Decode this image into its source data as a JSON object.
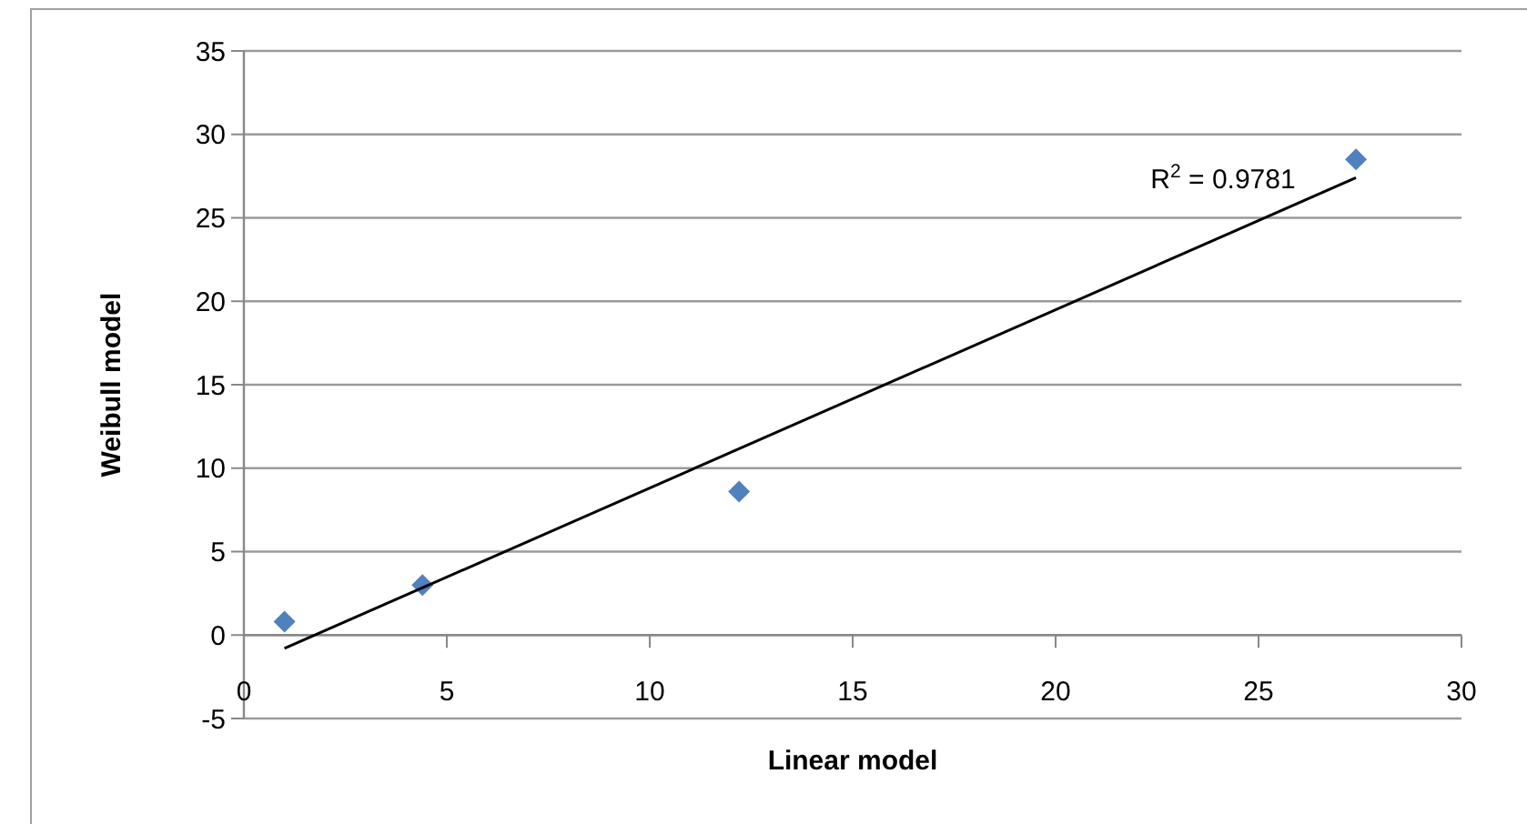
{
  "chart_data": {
    "type": "scatter",
    "xlabel": "Linear model",
    "ylabel": "Weibull model",
    "xlim": [
      0,
      30
    ],
    "xticks": [
      0,
      5,
      10,
      15,
      20,
      25,
      30
    ],
    "ylim": [
      -5,
      35
    ],
    "yticks": [
      -5,
      0,
      5,
      10,
      15,
      20,
      25,
      30,
      35
    ],
    "grid": "y",
    "marker": "diamond",
    "series": [
      {
        "color": "#4f81bd",
        "x": [
          1.0,
          4.4,
          12.2,
          27.4
        ],
        "values": [
          0.8,
          3.0,
          8.6,
          28.5
        ]
      },
      {
        "type": "line",
        "color": "#000000",
        "marker": "none",
        "x": [
          1.0,
          27.4
        ],
        "values": [
          -0.8,
          27.4
        ]
      }
    ],
    "annotations": [
      "R$^{2}$ = 0.9781"
    ]
  }
}
